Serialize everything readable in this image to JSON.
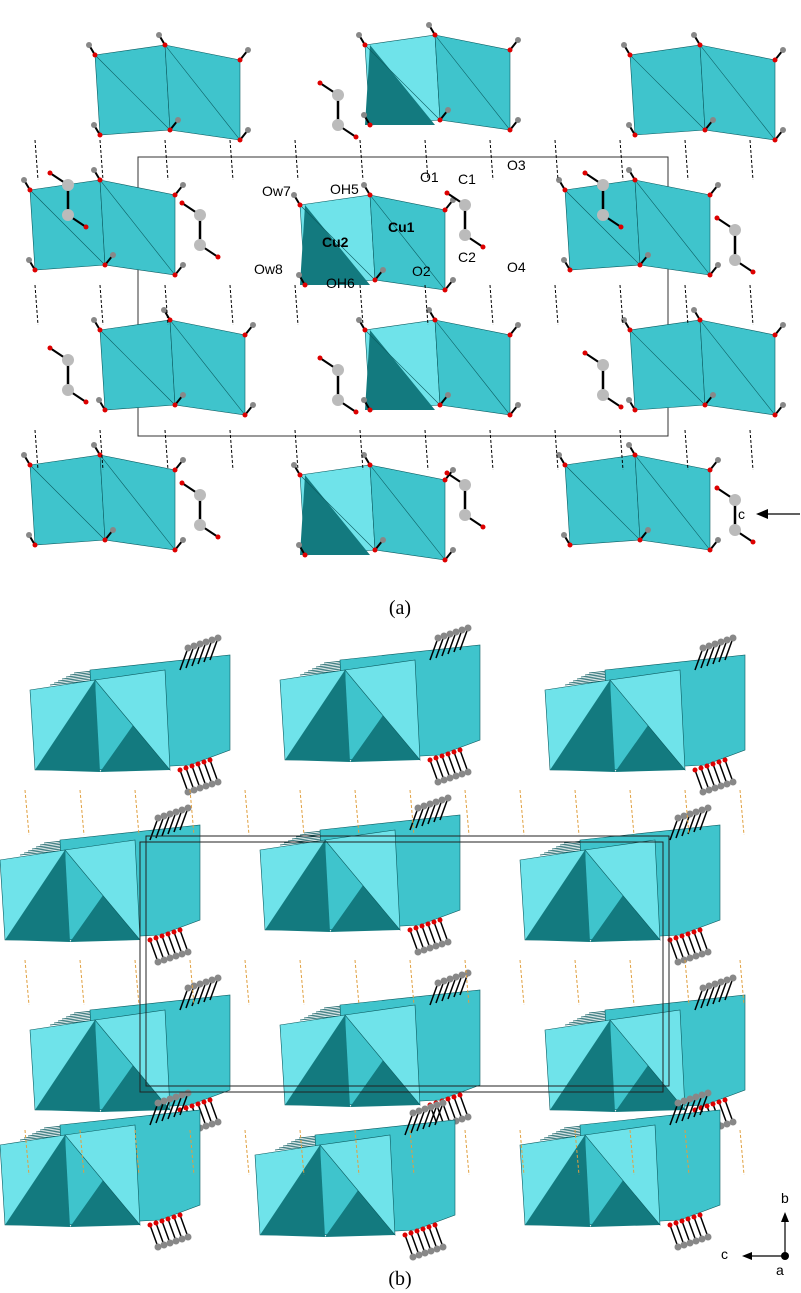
{
  "panel_a": {
    "atom_labels": [
      "Ow7",
      "OH5",
      "O1",
      "C1",
      "O3",
      "Cu2",
      "Cu1",
      "C2",
      "O2",
      "O4",
      "Ow8",
      "OH6"
    ],
    "axis_label": "c",
    "caption": "(a)"
  },
  "panel_b": {
    "axis_labels": [
      "b",
      "c",
      "a"
    ],
    "caption": "(b)"
  }
}
